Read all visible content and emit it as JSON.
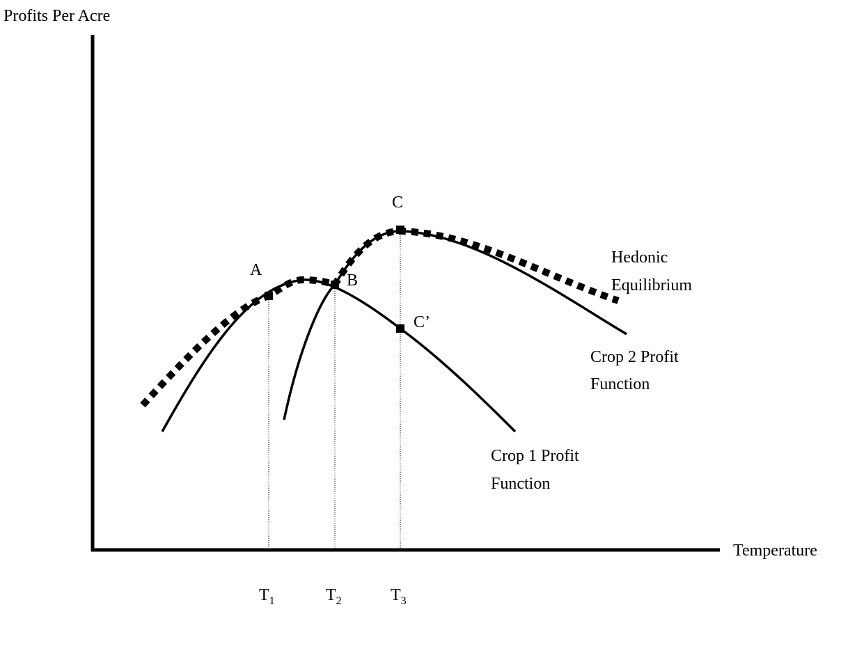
{
  "axes": {
    "y_label": "Profits Per Acre",
    "x_label": "Temperature"
  },
  "points": [
    "A",
    "B",
    "C",
    "C’"
  ],
  "curve_labels": {
    "hedonic": [
      "Hedonic",
      "Equilibrium"
    ],
    "crop2": [
      "Crop 2 Profit",
      "Function"
    ],
    "crop1": [
      "Crop 1 Profit",
      "Function"
    ]
  },
  "temperatures": [
    {
      "main": "T",
      "sub": "1"
    },
    {
      "main": "T",
      "sub": "2"
    },
    {
      "main": "T",
      "sub": "3"
    }
  ]
}
